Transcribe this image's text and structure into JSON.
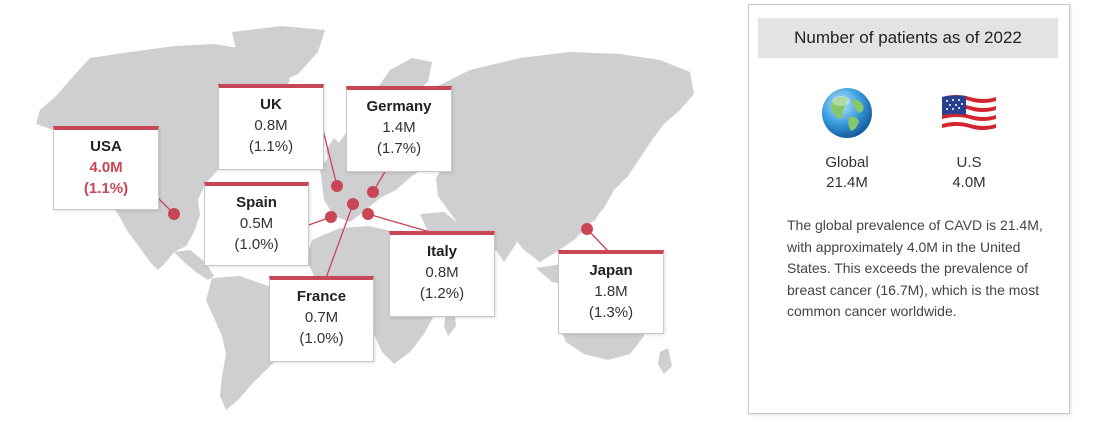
{
  "panel": {
    "title": "Number of patients as of 2022",
    "stats": [
      {
        "label": "Global",
        "value": "21.4M",
        "icon": "globe-icon"
      },
      {
        "label": "U.S",
        "value": "4.0M",
        "icon": "us-flag-icon"
      }
    ],
    "description": "The global prevalence of CAVD is 21.4M, with approximately 4.0M in the United States. This exceeds the prevalence of breast cancer (16.7M), which is the most common cancer worldwide."
  },
  "countries": [
    {
      "name": "USA",
      "value": "4.0M",
      "share": "(1.1%)",
      "highlight": true
    },
    {
      "name": "UK",
      "value": "0.8M",
      "share": "(1.1%)"
    },
    {
      "name": "Germany",
      "value": "1.4M",
      "share": "(1.7%)"
    },
    {
      "name": "Spain",
      "value": "0.5M",
      "share": "(1.0%)"
    },
    {
      "name": "Italy",
      "value": "0.8M",
      "share": "(1.2%)"
    },
    {
      "name": "France",
      "value": "0.7M",
      "share": "(1.0%)"
    },
    {
      "name": "Japan",
      "value": "1.8M",
      "share": "(1.3%)"
    }
  ],
  "colors": {
    "accent": "#c94656",
    "land": "#cfcfd1",
    "panel_header": "#e3e3e3"
  }
}
